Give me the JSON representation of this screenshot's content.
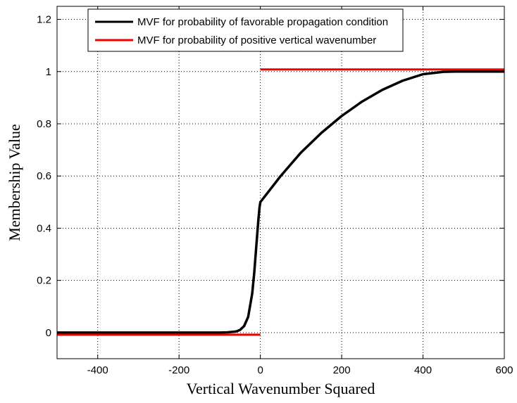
{
  "chart_data": {
    "type": "line",
    "title": "",
    "xlabel": "Vertical Wavenumber Squared",
    "ylabel": "Membership Value",
    "xlim": [
      -500,
      600
    ],
    "ylim": [
      -0.1,
      1.25
    ],
    "xticks": [
      -400,
      -200,
      0,
      200,
      400,
      600
    ],
    "xtick_labels": [
      "-400",
      "-200",
      "0",
      "200",
      "400",
      "600"
    ],
    "yticks": [
      0,
      0.2,
      0.4,
      0.6,
      0.8,
      1,
      1.2
    ],
    "ytick_labels": [
      "0",
      "0.2",
      "0.4",
      "0.6",
      "0.8",
      "1",
      "1.2"
    ],
    "grid": true,
    "legend_position": "top",
    "series": [
      {
        "name": "MVF for probability of favorable propagation condition",
        "color": "#000000",
        "x": [
          -500,
          -100,
          -80,
          -60,
          -50,
          -40,
          -30,
          -20,
          -15,
          -10,
          -5,
          -2,
          0,
          10,
          25,
          50,
          75,
          100,
          150,
          200,
          250,
          300,
          350,
          400,
          450,
          480,
          500,
          600
        ],
        "y": [
          0,
          0,
          0.001,
          0.004,
          0.01,
          0.025,
          0.06,
          0.15,
          0.23,
          0.33,
          0.43,
          0.48,
          0.5,
          0.52,
          0.55,
          0.6,
          0.645,
          0.69,
          0.765,
          0.83,
          0.885,
          0.93,
          0.965,
          0.99,
          0.999,
          1.0,
          1.0,
          1.0
        ]
      },
      {
        "name": "MVF for probability of positive vertical wavenumber",
        "color": "#ee0000",
        "segments": [
          {
            "x": [
              -500,
              0
            ],
            "y": [
              0,
              0
            ]
          },
          {
            "x": [
              0,
              600
            ],
            "y": [
              1,
              1
            ]
          }
        ]
      }
    ]
  }
}
